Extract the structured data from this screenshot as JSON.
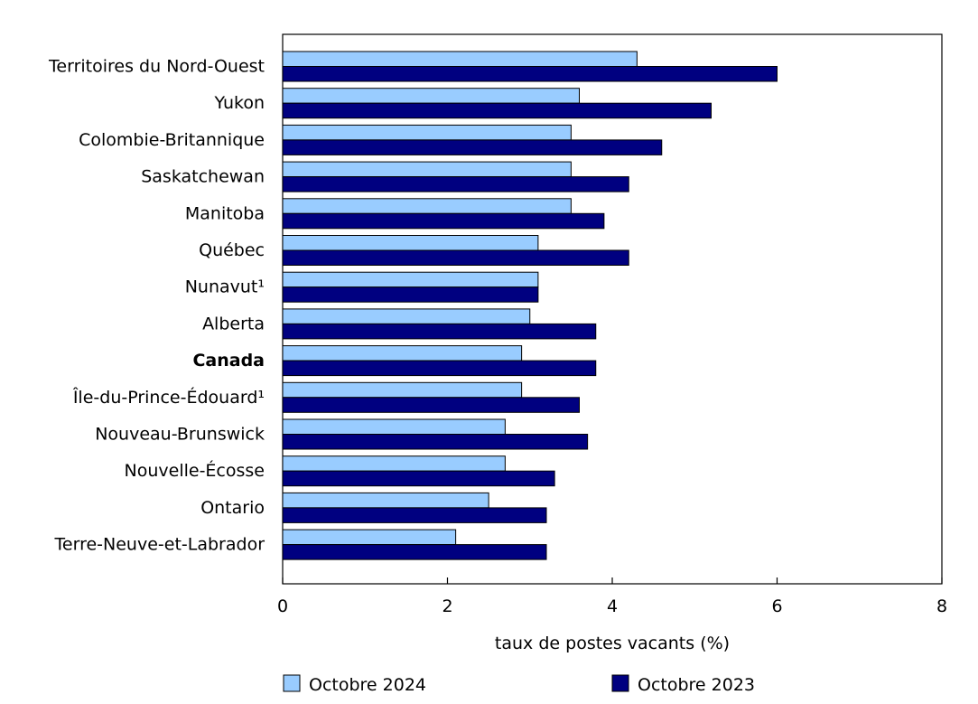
{
  "chart_data": {
    "type": "bar",
    "orientation": "horizontal",
    "categories": [
      "Territoires du Nord-Ouest",
      "Yukon",
      "Colombie-Britannique",
      "Saskatchewan",
      "Manitoba",
      "Québec",
      "Nunavut¹",
      "Alberta",
      "Canada",
      "Île-du-Prince-Édouard¹",
      "Nouveau-Brunswick",
      "Nouvelle-Écosse",
      "Ontario",
      "Terre-Neuve-et-Labrador"
    ],
    "bold_categories": [
      "Canada"
    ],
    "series": [
      {
        "name": "Octobre 2024",
        "color": "#99ccff",
        "values": [
          4.3,
          3.6,
          3.5,
          3.5,
          3.5,
          3.1,
          3.1,
          3.0,
          2.9,
          2.9,
          2.7,
          2.7,
          2.5,
          2.1
        ]
      },
      {
        "name": "Octobre 2023",
        "color": "#000080",
        "values": [
          6.0,
          5.2,
          4.6,
          4.2,
          3.9,
          4.2,
          3.1,
          3.8,
          3.8,
          3.6,
          3.7,
          3.3,
          3.2,
          3.2
        ]
      }
    ],
    "title": "",
    "xlabel": "taux de postes vacants (%)",
    "ylabel": "",
    "xlim": [
      0,
      8
    ],
    "xticks": [
      "0",
      "2",
      "4",
      "6",
      "8"
    ],
    "grid": false,
    "legend_position": "bottom"
  }
}
